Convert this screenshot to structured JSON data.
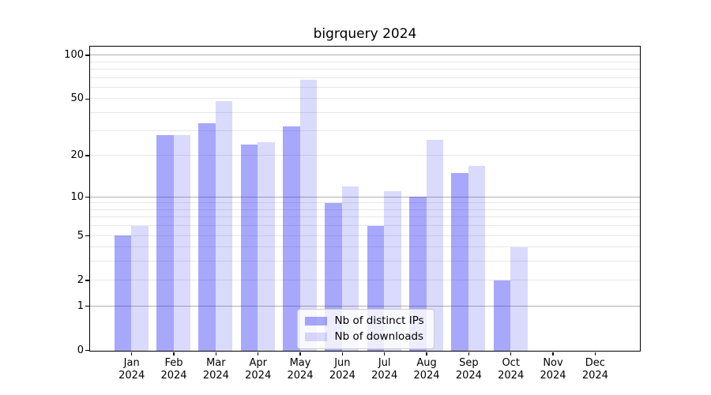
{
  "chart_data": {
    "type": "bar",
    "title": "bigrquery 2024",
    "categories": [
      "Jan\n2024",
      "Feb\n2024",
      "Mar\n2024",
      "Apr\n2024",
      "May\n2024",
      "Jun\n2024",
      "Jul\n2024",
      "Aug\n2024",
      "Sep\n2024",
      "Oct\n2024",
      "Nov\n2024",
      "Dec\n2024"
    ],
    "series": [
      {
        "name": "Nb of distinct IPs",
        "color": "rgba(35,35,244,0.40)",
        "values": [
          5,
          28,
          34,
          24,
          32,
          9,
          6,
          10,
          15,
          2,
          0,
          0
        ]
      },
      {
        "name": "Nb of downloads",
        "color": "rgba(35,35,244,0.17)",
        "values": [
          6,
          28,
          48,
          25,
          68,
          12,
          11,
          26,
          17,
          4,
          0,
          0
        ]
      }
    ],
    "yscale": "log1p",
    "ylim": [
      0,
      115
    ],
    "yticks": {
      "labeled_values": [
        100,
        50,
        20,
        10,
        5,
        2,
        1,
        0
      ],
      "labels": [
        "100",
        "50",
        "20",
        "10",
        "5",
        "2",
        "1",
        "0"
      ],
      "decade_gridlines": [
        1,
        10,
        100
      ],
      "minor_gridlines": [
        2,
        3,
        4,
        5,
        6,
        7,
        8,
        9,
        20,
        30,
        40,
        50,
        60,
        70,
        80,
        90
      ]
    },
    "legend_position": "lower center",
    "grid": true,
    "colors": {
      "decade_grid": "#b0b0b0",
      "minor_grid": "#e7e7e7",
      "spine": "#000000",
      "text": "#000000"
    }
  }
}
